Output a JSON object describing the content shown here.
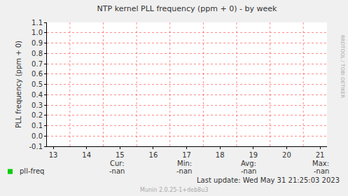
{
  "chart_data": {
    "type": "line",
    "title": "NTP kernel PLL frequency (ppm + 0) - by week",
    "y_label": "PLL frequency (ppm + 0)",
    "x": [
      13,
      14,
      15,
      16,
      17,
      18,
      19,
      20,
      21
    ],
    "series": [
      {
        "name": "pll-freq",
        "color": "#00cc00",
        "values": [
          null,
          null,
          null,
          null,
          null,
          null,
          null,
          null,
          null
        ]
      }
    ],
    "xlim": [
      12.81,
      21.21
    ],
    "xticks": [
      13,
      14,
      15,
      16,
      17,
      18,
      19,
      20,
      21
    ],
    "ylim": [
      -0.1,
      1.1
    ],
    "yticks": [
      -0.1,
      {
        "value": 0,
        "label": "0.0"
      },
      0.1,
      0.2,
      0.3,
      0.4,
      0.5,
      0.6,
      0.7,
      0.8,
      0.9,
      {
        "value": 1,
        "label": "1.0"
      },
      1.1
    ],
    "grid": true,
    "stats": {
      "headers": [
        "Cur:",
        "Min:",
        "Avg:",
        "Max:"
      ],
      "values": [
        "-nan",
        "-nan",
        "-nan",
        "-nan"
      ]
    },
    "last_update": "Last update: Wed May 31 21:25:03 2023",
    "watermark": "RRDTOOL / TOBI OETIKER",
    "footer": "Munin 2.0.25-1+deb8u3"
  }
}
